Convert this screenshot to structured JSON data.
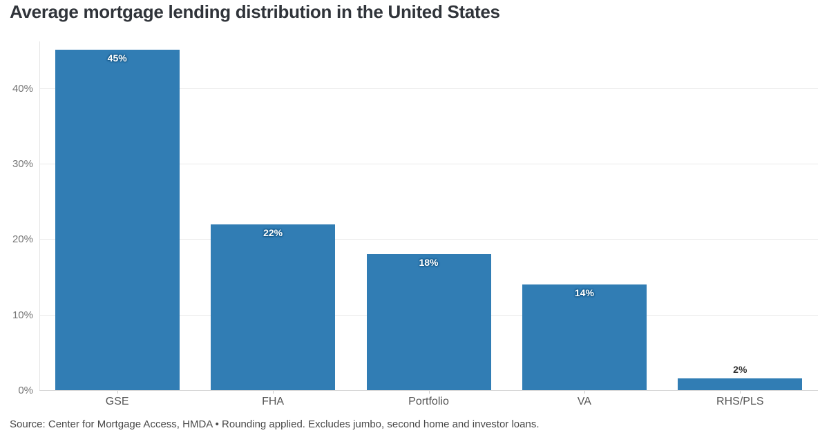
{
  "header": {
    "title": "Average mortgage lending distribution in the United States"
  },
  "footer": {
    "source_note": "Source: Center for Mortgage Access, HMDA • Rounding applied. Excludes jumbo, second home and investor loans."
  },
  "chart_data": {
    "type": "bar",
    "title": "Average mortgage lending distribution in the United States",
    "categories": [
      "GSE",
      "FHA",
      "Portfolio",
      "VA",
      "RHS/PLS"
    ],
    "values": [
      45,
      22,
      18,
      14,
      2
    ],
    "value_labels": [
      "45%",
      "22%",
      "18%",
      "14%",
      "2%"
    ],
    "rendered_bar_heights_pct": [
      45.1,
      22,
      18,
      14,
      1.55
    ],
    "xlabel": "",
    "ylabel": "",
    "y_ticks": [
      {
        "value": 0,
        "label": "0%"
      },
      {
        "value": 10,
        "label": "10%"
      },
      {
        "value": 20,
        "label": "20%"
      },
      {
        "value": 30,
        "label": "30%"
      },
      {
        "value": 40,
        "label": "40%"
      }
    ],
    "ylim": [
      0,
      46.2
    ],
    "grid": "horizontal",
    "legend": "none",
    "colors": {
      "bar": "#317db4",
      "label_inside": "#ffffff",
      "label_outside": "#333333",
      "grid": "#e9e9e9",
      "baseline": "#d6d6d6",
      "axis_text": "#757575",
      "category_text": "#555555",
      "title_text": "#30343a",
      "source_text": "#484848"
    }
  }
}
